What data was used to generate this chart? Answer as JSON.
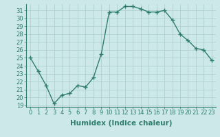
{
  "x": [
    0,
    1,
    2,
    3,
    4,
    5,
    6,
    7,
    8,
    9,
    10,
    11,
    12,
    13,
    14,
    15,
    16,
    17,
    18,
    19,
    20,
    21,
    22,
    23
  ],
  "y": [
    25.0,
    23.3,
    21.5,
    19.2,
    20.3,
    20.5,
    21.5,
    21.3,
    22.5,
    25.5,
    30.8,
    30.8,
    31.5,
    31.5,
    31.2,
    30.8,
    30.8,
    31.0,
    29.8,
    28.0,
    27.2,
    26.2,
    26.0,
    24.7
  ],
  "xlabel": "Humidex (Indice chaleur)",
  "xlim": [
    -0.5,
    23.5
  ],
  "ylim": [
    18.8,
    31.8
  ],
  "yticks": [
    19,
    20,
    21,
    22,
    23,
    24,
    25,
    26,
    27,
    28,
    29,
    30,
    31
  ],
  "xticks": [
    0,
    1,
    2,
    3,
    4,
    5,
    6,
    7,
    8,
    9,
    10,
    11,
    12,
    13,
    14,
    15,
    16,
    17,
    18,
    19,
    20,
    21,
    22,
    23
  ],
  "line_color": "#2e7d6e",
  "marker": "+",
  "bg_color": "#cce8e8",
  "grid_color": "#aacccc",
  "tick_label_fontsize": 6,
  "xlabel_fontsize": 7.5,
  "line_width": 1.0,
  "marker_size": 4,
  "marker_edge_width": 1.0
}
